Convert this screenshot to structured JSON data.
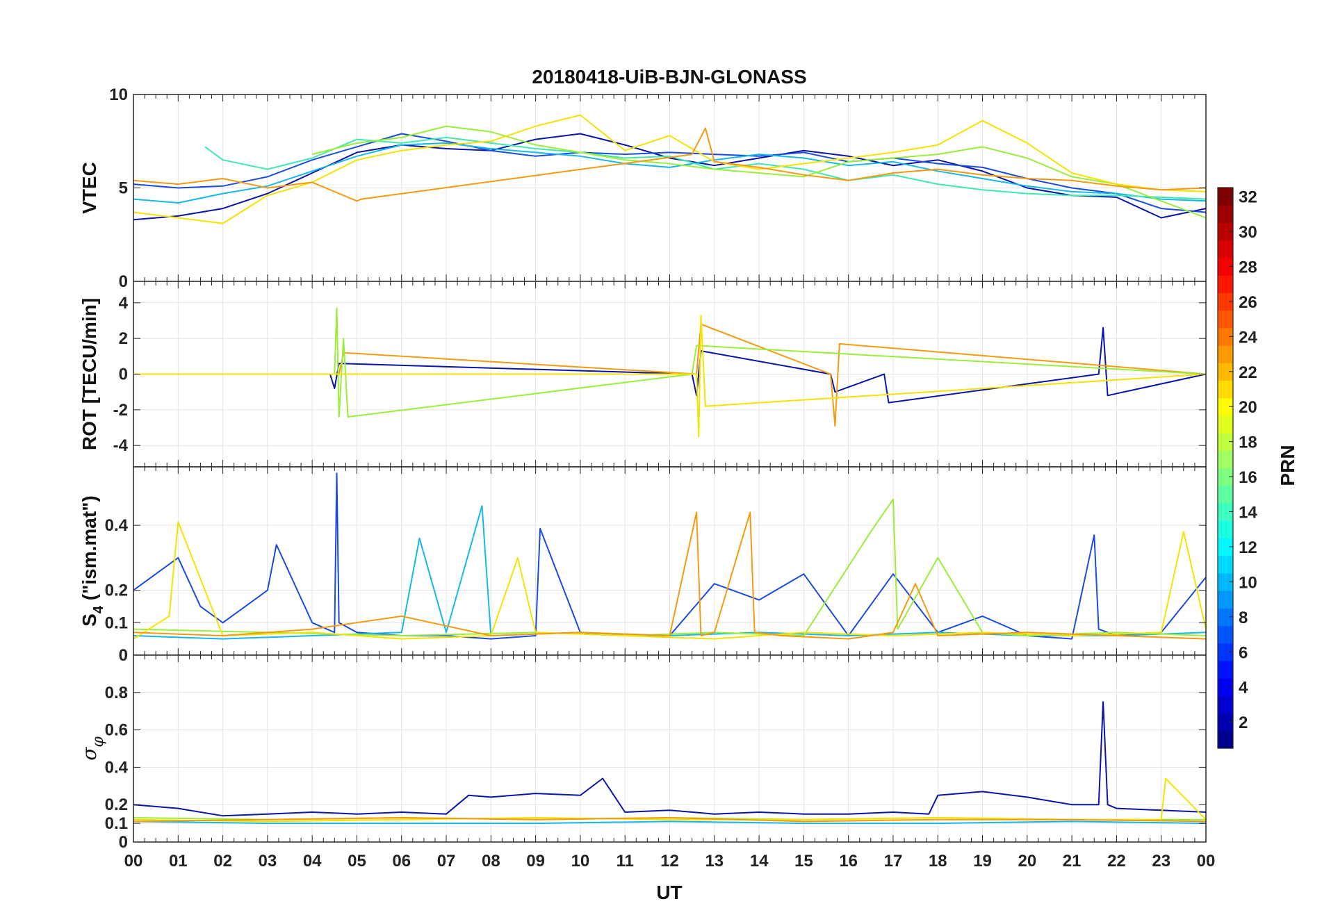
{
  "chart_data": {
    "type": "line",
    "title": "20180418-UiB-BJN-GLONASS",
    "xlabel": "UT",
    "xlim": [
      0,
      24
    ],
    "x_tick_labels": [
      "00",
      "01",
      "02",
      "03",
      "04",
      "05",
      "06",
      "07",
      "08",
      "09",
      "10",
      "11",
      "12",
      "13",
      "14",
      "15",
      "16",
      "17",
      "18",
      "19",
      "20",
      "21",
      "22",
      "23",
      "00"
    ],
    "panels": [
      {
        "id": "vtec",
        "ylabel": "VTEC",
        "ylim": [
          0,
          10
        ],
        "y_ticks": [
          0,
          5,
          10
        ],
        "y_tick_labels": [
          "0",
          "5",
          "10"
        ],
        "series": [
          {
            "color": "#0b14a8",
            "x": [
              0,
              1,
              2,
              3,
              4,
              5,
              6,
              7,
              8,
              9,
              10,
              11,
              12,
              13,
              14,
              15,
              16,
              17,
              18,
              19,
              20,
              21,
              22,
              23,
              24
            ],
            "y": [
              3.3,
              3.5,
              3.9,
              4.7,
              5.8,
              6.9,
              7.3,
              7.1,
              7.0,
              7.6,
              7.9,
              7.3,
              6.6,
              6.2,
              6.6,
              7.0,
              6.7,
              6.2,
              6.5,
              5.9,
              5.0,
              4.6,
              4.5,
              3.4,
              3.9
            ]
          },
          {
            "color": "#1a4be0",
            "x": [
              0,
              1,
              2,
              3,
              4,
              5,
              6,
              7,
              8,
              9,
              10,
              11,
              12,
              13,
              14,
              15,
              16,
              17,
              18,
              19,
              20,
              21,
              22,
              23,
              24
            ],
            "y": [
              5.2,
              5.0,
              5.1,
              5.6,
              6.5,
              7.2,
              7.9,
              7.5,
              7.0,
              6.7,
              6.9,
              6.8,
              6.9,
              6.8,
              6.7,
              6.9,
              6.4,
              6.6,
              6.3,
              6.1,
              5.5,
              5.0,
              4.7,
              3.9,
              3.7
            ]
          },
          {
            "color": "#15b8e8",
            "x": [
              0,
              1,
              2,
              3,
              4,
              5,
              6,
              7,
              8,
              9,
              10,
              11,
              12,
              13,
              14,
              15,
              16,
              17,
              18,
              19,
              20,
              21,
              22,
              23,
              24
            ],
            "y": [
              4.4,
              4.2,
              4.7,
              5.1,
              5.9,
              6.7,
              7.3,
              7.4,
              7.1,
              6.9,
              6.7,
              6.3,
              6.1,
              6.5,
              6.8,
              6.6,
              6.2,
              6.4,
              5.9,
              5.5,
              5.1,
              4.8,
              4.7,
              4.4,
              4.3
            ]
          },
          {
            "color": "#3fe8b0",
            "x": [
              1.6,
              2,
              3,
              4,
              5,
              6,
              7,
              8,
              9,
              10,
              11,
              12,
              13,
              14,
              15,
              16,
              17,
              18,
              19,
              20,
              21,
              22,
              23,
              24
            ],
            "y": [
              7.2,
              6.5,
              6.0,
              6.6,
              7.6,
              7.4,
              7.7,
              7.4,
              7.1,
              6.9,
              6.6,
              6.7,
              6.0,
              6.3,
              6.0,
              5.4,
              5.7,
              5.2,
              4.9,
              4.7,
              4.6,
              4.6,
              4.5,
              4.4
            ]
          },
          {
            "color": "#9aee3a",
            "x": [
              4,
              5,
              6,
              7,
              8,
              9,
              10,
              11,
              12,
              13,
              14,
              15,
              16,
              17,
              18,
              19,
              20,
              21,
              22,
              23,
              24
            ],
            "y": [
              6.8,
              7.4,
              7.7,
              8.3,
              8.0,
              7.3,
              6.9,
              6.5,
              6.3,
              6.0,
              5.8,
              5.6,
              6.4,
              6.6,
              6.8,
              7.2,
              6.6,
              5.6,
              5.2,
              4.3,
              3.4
            ]
          },
          {
            "color": "#f4e300",
            "x": [
              0,
              1,
              2,
              3,
              4,
              5,
              6,
              7,
              8,
              9,
              10,
              11,
              12,
              13,
              14,
              15,
              16,
              17,
              18,
              19,
              20,
              21,
              22,
              23,
              24
            ],
            "y": [
              3.7,
              3.4,
              3.1,
              4.6,
              5.3,
              6.5,
              7.0,
              7.3,
              7.5,
              8.3,
              8.9,
              7.0,
              7.8,
              6.4,
              6.0,
              6.3,
              6.6,
              6.9,
              7.3,
              8.6,
              7.4,
              5.8,
              5.2,
              4.9,
              4.8
            ]
          },
          {
            "color": "#f59a10",
            "x": [
              0,
              1,
              2,
              3,
              4,
              5,
              5.1,
              12.5,
              12.8,
              13,
              14,
              15,
              16,
              17,
              18,
              19,
              20,
              21,
              22,
              23,
              24
            ],
            "y": [
              5.4,
              5.2,
              5.5,
              5.0,
              5.3,
              4.3,
              4.4,
              6.8,
              8.2,
              6.4,
              6.1,
              5.7,
              5.4,
              5.8,
              6.0,
              5.7,
              5.5,
              5.4,
              5.1,
              4.9,
              5.0
            ]
          }
        ]
      },
      {
        "id": "rot",
        "ylabel": "ROT [TECU/min]",
        "ylim": [
          -5.2,
          5.2
        ],
        "y_ticks": [
          -4,
          -2,
          0,
          2,
          4
        ],
        "y_tick_labels": [
          "-4",
          "-2",
          "0",
          "2",
          "4"
        ],
        "series": [
          {
            "color": "#0b14a8",
            "x": [
              0,
              4.4,
              4.5,
              4.6,
              12.5,
              12.6,
              12.7,
              15.6,
              15.7,
              16.8,
              16.9,
              21.6,
              21.7,
              21.8,
              24
            ],
            "y": [
              0,
              0,
              -0.8,
              0.6,
              0,
              -1.2,
              1.3,
              0,
              -1.0,
              0,
              -1.6,
              0,
              2.6,
              -1.2,
              0
            ]
          },
          {
            "color": "#f59a10",
            "x": [
              0,
              4.6,
              4.7,
              12.6,
              12.7,
              15.6,
              15.7,
              15.8,
              24
            ],
            "y": [
              0,
              0,
              1.2,
              0,
              2.8,
              0,
              -2.9,
              1.7,
              0
            ]
          },
          {
            "color": "#9aee3a",
            "x": [
              0,
              4.5,
              4.55,
              4.6,
              4.7,
              4.8,
              12.5,
              12.6,
              24
            ],
            "y": [
              0,
              0,
              3.7,
              -2.4,
              2.0,
              -2.4,
              0,
              1.6,
              0
            ]
          },
          {
            "color": "#f4e300",
            "x": [
              0,
              12.6,
              12.65,
              12.7,
              12.8,
              24
            ],
            "y": [
              0,
              0,
              -3.5,
              3.3,
              -1.8,
              0
            ]
          }
        ]
      },
      {
        "id": "s4",
        "ylabel": "S4 (\"ism.mat\")",
        "ylim": [
          0,
          0.58
        ],
        "y_ticks": [
          0,
          0.1,
          0.2,
          0.4
        ],
        "y_tick_labels": [
          "0",
          "0.1",
          "0.2",
          "0.4"
        ],
        "series": [
          {
            "color": "#1a4be0",
            "x": [
              0,
              1,
              1.5,
              2,
              3,
              3.2,
              4,
              4.5,
              4.55,
              4.6,
              5,
              6,
              7,
              8,
              9,
              9.1,
              10,
              11,
              12,
              13,
              14,
              15,
              16,
              17,
              18,
              19,
              20,
              21,
              21.5,
              21.6,
              22,
              23,
              24
            ],
            "y": [
              0.2,
              0.3,
              0.15,
              0.1,
              0.2,
              0.34,
              0.1,
              0.07,
              0.56,
              0.1,
              0.07,
              0.06,
              0.06,
              0.05,
              0.06,
              0.39,
              0.07,
              0.06,
              0.06,
              0.22,
              0.17,
              0.25,
              0.06,
              0.25,
              0.07,
              0.12,
              0.06,
              0.05,
              0.37,
              0.08,
              0.06,
              0.07,
              0.24
            ]
          },
          {
            "color": "#15b8e8",
            "x": [
              0,
              2,
              4,
              6,
              6.4,
              7,
              7.8,
              8,
              10,
              12,
              14,
              16,
              18,
              20,
              22,
              24
            ],
            "y": [
              0.06,
              0.05,
              0.06,
              0.07,
              0.36,
              0.07,
              0.46,
              0.06,
              0.07,
              0.06,
              0.07,
              0.06,
              0.07,
              0.06,
              0.06,
              0.07
            ]
          },
          {
            "color": "#9aee3a",
            "x": [
              0,
              3,
              6,
              9,
              11,
              13,
              15,
              16.5,
              17,
              17.1,
              18,
              19,
              20,
              22,
              24
            ],
            "y": [
              0.08,
              0.07,
              0.06,
              0.07,
              0.06,
              0.07,
              0.06,
              0.38,
              0.48,
              0.08,
              0.3,
              0.07,
              0.06,
              0.07,
              0.06
            ]
          },
          {
            "color": "#f4e300",
            "x": [
              0,
              0.8,
              1,
              2,
              4,
              6,
              8,
              8.6,
              9,
              11,
              13,
              15,
              17,
              19,
              21,
              23,
              23.5,
              24
            ],
            "y": [
              0.05,
              0.12,
              0.41,
              0.06,
              0.07,
              0.05,
              0.06,
              0.3,
              0.07,
              0.06,
              0.05,
              0.07,
              0.06,
              0.07,
              0.06,
              0.07,
              0.38,
              0.08
            ]
          },
          {
            "color": "#f59a10",
            "x": [
              0,
              2,
              4,
              6,
              8,
              10,
              12,
              12.6,
              12.7,
              13,
              13.8,
              13.9,
              14.5,
              16,
              17,
              17.5,
              18,
              20,
              22,
              24
            ],
            "y": [
              0.07,
              0.06,
              0.08,
              0.12,
              0.06,
              0.07,
              0.06,
              0.44,
              0.06,
              0.07,
              0.44,
              0.07,
              0.06,
              0.05,
              0.07,
              0.22,
              0.06,
              0.07,
              0.06,
              0.05
            ]
          }
        ]
      },
      {
        "id": "sigma",
        "ylabel": "σφ",
        "ylim": [
          0,
          1
        ],
        "y_ticks": [
          0,
          0.1,
          0.2,
          0.4,
          0.6,
          0.8
        ],
        "y_tick_labels": [
          "0",
          "0.1",
          "0.2",
          "0.4",
          "0.6",
          "0.8"
        ],
        "series": [
          {
            "color": "#0b14a8",
            "x": [
              0,
              1,
              2,
              3,
              4,
              5,
              6,
              7,
              7.5,
              8,
              9,
              10,
              10.5,
              11,
              12,
              13,
              14,
              15,
              16,
              17,
              17.8,
              18,
              19,
              20,
              21,
              21.6,
              21.7,
              21.8,
              22,
              23,
              24
            ],
            "y": [
              0.2,
              0.18,
              0.14,
              0.15,
              0.16,
              0.15,
              0.16,
              0.15,
              0.25,
              0.24,
              0.26,
              0.25,
              0.34,
              0.16,
              0.17,
              0.15,
              0.16,
              0.15,
              0.15,
              0.16,
              0.15,
              0.25,
              0.27,
              0.24,
              0.2,
              0.2,
              0.75,
              0.2,
              0.18,
              0.17,
              0.16
            ]
          },
          {
            "color": "#15b8e8",
            "x": [
              0,
              3,
              6,
              9,
              12,
              15,
              18,
              21,
              24
            ],
            "y": [
              0.11,
              0.1,
              0.1,
              0.1,
              0.11,
              0.1,
              0.1,
              0.11,
              0.1
            ]
          },
          {
            "color": "#9aee3a",
            "x": [
              0,
              3,
              6,
              9,
              12,
              15,
              18,
              21,
              24
            ],
            "y": [
              0.13,
              0.12,
              0.13,
              0.12,
              0.13,
              0.12,
              0.13,
              0.12,
              0.12
            ]
          },
          {
            "color": "#f4e300",
            "x": [
              0,
              3,
              6,
              9,
              12,
              15,
              18,
              21,
              23,
              23.1,
              24
            ],
            "y": [
              0.12,
              0.11,
              0.12,
              0.13,
              0.12,
              0.12,
              0.13,
              0.12,
              0.12,
              0.34,
              0.12
            ]
          },
          {
            "color": "#f59a10",
            "x": [
              0,
              3,
              6,
              9,
              12,
              15,
              18,
              21,
              24
            ],
            "y": [
              0.11,
              0.12,
              0.13,
              0.12,
              0.13,
              0.11,
              0.12,
              0.12,
              0.11
            ]
          }
        ]
      }
    ],
    "colorbar": {
      "label": "PRN",
      "range": [
        1,
        32
      ],
      "tick_values": [
        2,
        4,
        6,
        8,
        10,
        12,
        14,
        16,
        18,
        20,
        22,
        24,
        26,
        28,
        30,
        32
      ],
      "tick_labels": [
        "2",
        "4",
        "6",
        "8",
        "10",
        "12",
        "14",
        "16",
        "18",
        "20",
        "22",
        "24",
        "26",
        "28",
        "30",
        "32"
      ],
      "colormap": "jet"
    },
    "grid": true,
    "legend": "colorbar-right"
  }
}
